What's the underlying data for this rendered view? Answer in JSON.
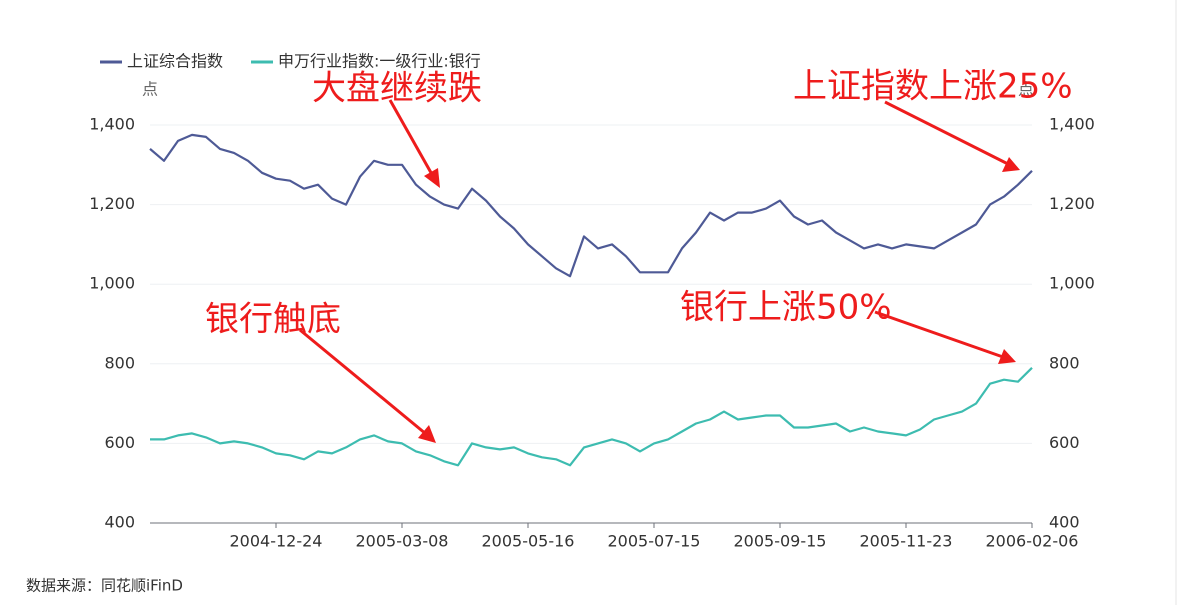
{
  "chart_data": {
    "type": "line",
    "y_unit": "点",
    "y2_unit": "点",
    "source": "数据来源：同花顺iFinD",
    "annotations": [
      "大盘继续跌",
      "上证指数上涨25%",
      "银行触底",
      "银行上涨50%"
    ],
    "x": [
      "2004-10-22",
      "2004-10-29",
      "2004-11-05",
      "2004-11-12",
      "2004-11-19",
      "2004-11-26",
      "2004-12-03",
      "2004-12-10",
      "2004-12-17",
      "2004-12-24",
      "2004-12-31",
      "2005-01-07",
      "2005-01-14",
      "2005-01-21",
      "2005-01-28",
      "2005-02-04",
      "2005-02-18",
      "2005-02-25",
      "2005-03-08",
      "2005-03-15",
      "2005-03-22",
      "2005-03-29",
      "2005-04-05",
      "2005-04-12",
      "2005-04-19",
      "2005-04-26",
      "2005-05-10",
      "2005-05-16",
      "2005-05-23",
      "2005-05-30",
      "2005-06-06",
      "2005-06-13",
      "2005-06-20",
      "2005-06-27",
      "2005-07-01",
      "2005-07-08",
      "2005-07-15",
      "2005-07-22",
      "2005-07-29",
      "2005-08-05",
      "2005-08-12",
      "2005-08-19",
      "2005-08-26",
      "2005-09-02",
      "2005-09-09",
      "2005-09-15",
      "2005-09-22",
      "2005-09-29",
      "2005-10-14",
      "2005-10-21",
      "2005-10-28",
      "2005-11-04",
      "2005-11-11",
      "2005-11-16",
      "2005-11-23",
      "2005-11-30",
      "2005-12-07",
      "2005-12-14",
      "2005-12-21",
      "2005-12-28",
      "2006-01-06",
      "2006-01-13",
      "2006-01-20",
      "2006-02-06"
    ],
    "xticks": [
      "2004-12-24",
      "2005-03-08",
      "2005-05-16",
      "2005-07-15",
      "2005-09-15",
      "2005-11-23",
      "2006-02-06"
    ],
    "ylim": [
      400,
      1400
    ],
    "y2lim": [
      400,
      1400
    ],
    "yticks": [
      {
        "value": 400,
        "label": "400"
      },
      {
        "value": 600,
        "label": "600"
      },
      {
        "value": 800,
        "label": "800"
      },
      {
        "value": 1000,
        "label": "1,000"
      },
      {
        "value": 1200,
        "label": "1,200"
      },
      {
        "value": 1400,
        "label": "1,400"
      }
    ],
    "y2ticks": [
      {
        "value": 400,
        "label": "400"
      },
      {
        "value": 600,
        "label": "600"
      },
      {
        "value": 800,
        "label": "800"
      },
      {
        "value": 1000,
        "label": "1,000"
      },
      {
        "value": 1200,
        "label": "1,200"
      },
      {
        "value": 1400,
        "label": "1,400"
      }
    ],
    "grid": true,
    "series": [
      {
        "name": "上证综合指数",
        "color": "#4e5a96",
        "values": [
          1340,
          1310,
          1360,
          1375,
          1370,
          1340,
          1330,
          1310,
          1280,
          1265,
          1260,
          1240,
          1250,
          1215,
          1200,
          1270,
          1310,
          1300,
          1300,
          1250,
          1220,
          1200,
          1190,
          1240,
          1210,
          1170,
          1140,
          1100,
          1070,
          1040,
          1020,
          1120,
          1090,
          1100,
          1070,
          1030,
          1030,
          1030,
          1090,
          1130,
          1180,
          1160,
          1180,
          1180,
          1190,
          1210,
          1170,
          1150,
          1160,
          1130,
          1110,
          1090,
          1100,
          1090,
          1100,
          1095,
          1090,
          1110,
          1130,
          1150,
          1200,
          1220,
          1250,
          1285
        ]
      },
      {
        "name": "申万行业指数:一级行业:银行",
        "color": "#3dbcb0",
        "axis": "y2",
        "values": [
          610,
          610,
          620,
          625,
          615,
          600,
          605,
          600,
          590,
          575,
          570,
          560,
          580,
          575,
          590,
          610,
          620,
          605,
          600,
          580,
          570,
          555,
          545,
          600,
          590,
          585,
          590,
          575,
          565,
          560,
          545,
          590,
          600,
          610,
          600,
          580,
          600,
          610,
          630,
          650,
          660,
          680,
          660,
          665,
          670,
          670,
          640,
          640,
          645,
          650,
          630,
          640,
          630,
          625,
          620,
          635,
          660,
          670,
          680,
          700,
          750,
          760,
          755,
          790
        ]
      }
    ]
  }
}
